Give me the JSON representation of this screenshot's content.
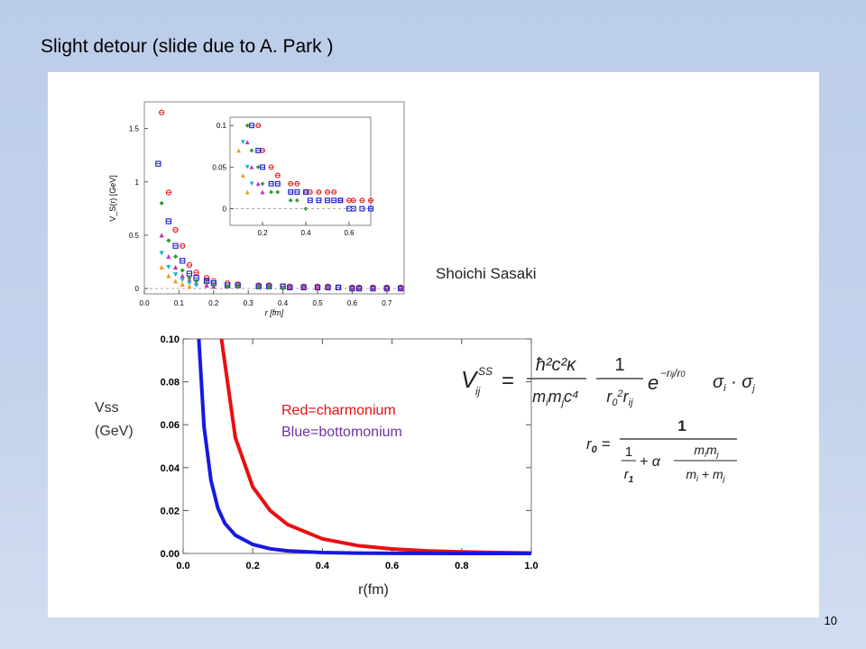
{
  "slide": {
    "title": "Slight detour (slide due to A. Park )",
    "page_number": "10"
  },
  "colors": {
    "charmonium": "#e81010",
    "bottomonium": "#1a1ad8",
    "background": "#c4d3ec"
  },
  "author_label": "Shoichi Sasaki",
  "formulas": {
    "potential": "V_ij^SS = (ħ² c² κ / m_i m_j c⁴) (1 / r_0² r_ij) e^(−r_ij/r_0) σ_i · σ_j",
    "r0": "r_0 = 1 / (1/r_1 + α m_i m_j/(m_i + m_j))"
  },
  "chart_data": [
    {
      "type": "scatter",
      "xlabel": "r  [fm]",
      "ylabel": "V_S(r) [GeV]",
      "xlim": [
        0,
        0.75
      ],
      "ylim": [
        -0.05,
        1.75
      ],
      "x_ticks": [
        "0.0",
        "0.1",
        "0.2",
        "0.3",
        "0.4",
        "0.5",
        "0.6",
        "0.7"
      ],
      "y_ticks": [
        "0",
        "0.5",
        "1",
        "1.5"
      ],
      "series": [
        {
          "color": "#e01818",
          "marker": "circle-cross",
          "x": [
            0.05,
            0.07,
            0.09,
            0.11,
            0.13,
            0.15,
            0.18,
            0.2,
            0.24,
            0.27,
            0.33,
            0.36,
            0.4,
            0.42,
            0.46,
            0.5,
            0.53,
            0.56,
            0.6,
            0.62,
            0.66,
            0.7,
            0.74
          ],
          "y": [
            1.65,
            0.9,
            0.55,
            0.4,
            0.22,
            0.15,
            0.1,
            0.07,
            0.05,
            0.04,
            0.03,
            0.03,
            0.02,
            0.02,
            0.02,
            0.02,
            0.02,
            0.01,
            0.01,
            0.01,
            0.01,
            0.01,
            0.01
          ]
        },
        {
          "color": "#1a1ad8",
          "marker": "square-cross",
          "x": [
            0.04,
            0.07,
            0.09,
            0.11,
            0.13,
            0.15,
            0.18,
            0.2,
            0.24,
            0.27,
            0.33,
            0.36,
            0.4,
            0.42,
            0.46,
            0.5,
            0.53,
            0.56,
            0.6,
            0.62,
            0.66,
            0.7,
            0.74
          ],
          "y": [
            1.17,
            0.63,
            0.4,
            0.26,
            0.14,
            0.1,
            0.07,
            0.05,
            0.03,
            0.03,
            0.02,
            0.02,
            0.02,
            0.01,
            0.01,
            0.01,
            0.01,
            0.01,
            0.0,
            0.0,
            0.0,
            0.0,
            0.0
          ]
        },
        {
          "color": "#2e9e2e",
          "marker": "diamond",
          "x": [
            0.05,
            0.07,
            0.09,
            0.11,
            0.13,
            0.15,
            0.18,
            0.2,
            0.24,
            0.27,
            0.33,
            0.36,
            0.4
          ],
          "y": [
            0.8,
            0.45,
            0.3,
            0.17,
            0.1,
            0.07,
            0.05,
            0.03,
            0.02,
            0.02,
            0.01,
            0.01,
            0.0
          ]
        },
        {
          "color": "#c030c0",
          "marker": "triangle",
          "x": [
            0.05,
            0.07,
            0.09,
            0.11,
            0.13,
            0.15,
            0.18,
            0.2
          ],
          "y": [
            0.5,
            0.3,
            0.2,
            0.12,
            0.08,
            0.05,
            0.03,
            0.02
          ]
        },
        {
          "color": "#18b8d0",
          "marker": "triangle-down",
          "x": [
            0.05,
            0.07,
            0.09,
            0.11,
            0.13,
            0.15
          ],
          "y": [
            0.33,
            0.2,
            0.13,
            0.08,
            0.05,
            0.03
          ]
        },
        {
          "color": "#e8a020",
          "marker": "triangle",
          "x": [
            0.05,
            0.07,
            0.09,
            0.11,
            0.13
          ],
          "y": [
            0.2,
            0.12,
            0.07,
            0.04,
            0.02
          ]
        }
      ],
      "inset": {
        "xlim": [
          0.05,
          0.7
        ],
        "ylim": [
          -0.02,
          0.11
        ],
        "x_ticks": [
          "0.2",
          "0.4",
          "0.6"
        ],
        "y_ticks": [
          "0",
          "0.05",
          "0.1"
        ]
      }
    },
    {
      "type": "line",
      "xlabel": "r(fm)",
      "ylabel": "Vss\n(GeV)",
      "xlim": [
        0.0,
        1.0
      ],
      "ylim": [
        0.0,
        0.1
      ],
      "x_ticks": [
        "0.0",
        "0.2",
        "0.4",
        "0.6",
        "0.8",
        "1.0"
      ],
      "y_ticks": [
        "0.00",
        "0.02",
        "0.04",
        "0.06",
        "0.08",
        "0.10"
      ],
      "series": [
        {
          "name": "Red=charmonium",
          "color": "#e81010",
          "x": [
            0.11,
            0.15,
            0.2,
            0.25,
            0.3,
            0.4,
            0.5,
            0.6,
            0.7,
            0.8,
            0.9,
            1.0
          ],
          "y": [
            0.1,
            0.054,
            0.031,
            0.02,
            0.0135,
            0.0068,
            0.0037,
            0.0021,
            0.0012,
            0.0007,
            0.0004,
            0.0002
          ]
        },
        {
          "name": "Blue=bottomonium",
          "color": "#1818e0",
          "x": [
            0.045,
            0.06,
            0.08,
            0.1,
            0.12,
            0.15,
            0.2,
            0.25,
            0.3,
            0.4,
            0.5,
            0.6,
            0.8,
            1.0
          ],
          "y": [
            0.1,
            0.059,
            0.034,
            0.021,
            0.014,
            0.0085,
            0.0042,
            0.0022,
            0.0012,
            0.0004,
            0.00015,
            5e-05,
            0.0,
            0.0
          ]
        }
      ]
    }
  ]
}
